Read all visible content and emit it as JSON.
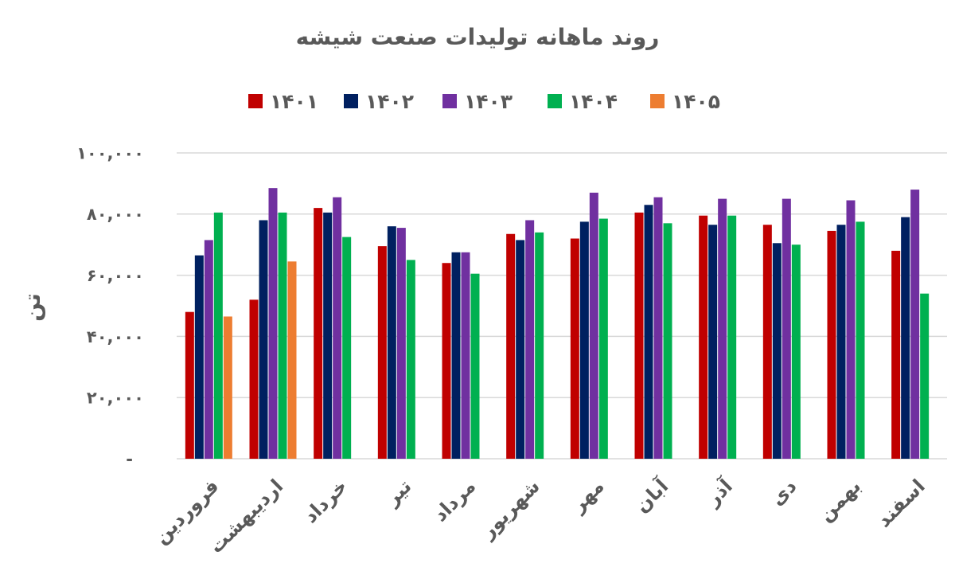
{
  "chart_data": {
    "type": "bar",
    "title": "روند ماهانه تولیدات صنعت شیشه",
    "xlabel": "",
    "ylabel": "تن",
    "ylim": [
      0,
      100000
    ],
    "yticks": [
      0,
      20000,
      40000,
      60000,
      80000,
      100000
    ],
    "ytick_labels": [
      "-",
      "۲۰,۰۰۰",
      "۴۰,۰۰۰",
      "۶۰,۰۰۰",
      "۸۰,۰۰۰",
      "۱۰۰,۰۰۰"
    ],
    "grid": true,
    "legend_position": "top",
    "categories": [
      "فروردین",
      "اردیبهشت",
      "خرداد",
      "تیر",
      "مرداد",
      "شهریور",
      "مهر",
      "آبان",
      "آذر",
      "دی",
      "بهمن",
      "اسفند"
    ],
    "series": [
      {
        "name": "۱۴۰۱",
        "color": "#C00000",
        "values": [
          48000,
          52000,
          82000,
          69500,
          64000,
          73500,
          72000,
          80500,
          79500,
          76500,
          74500,
          68000
        ]
      },
      {
        "name": "۱۴۰۲",
        "color": "#002060",
        "values": [
          66500,
          78000,
          80500,
          76000,
          67500,
          71500,
          77500,
          83000,
          76500,
          70500,
          76500,
          79000
        ]
      },
      {
        "name": "۱۴۰۳",
        "color": "#7030A0",
        "values": [
          71500,
          88500,
          85500,
          75500,
          67500,
          78000,
          87000,
          85500,
          85000,
          85000,
          84500,
          88000
        ]
      },
      {
        "name": "۱۴۰۴",
        "color": "#00B050",
        "values": [
          80500,
          80500,
          72500,
          65000,
          60500,
          74000,
          78500,
          77000,
          79500,
          70000,
          77500,
          54000
        ]
      },
      {
        "name": "۱۴۰۵",
        "color": "#ED7D31",
        "values": [
          46500,
          64500,
          null,
          null,
          null,
          null,
          null,
          null,
          null,
          null,
          null,
          null
        ]
      }
    ]
  }
}
